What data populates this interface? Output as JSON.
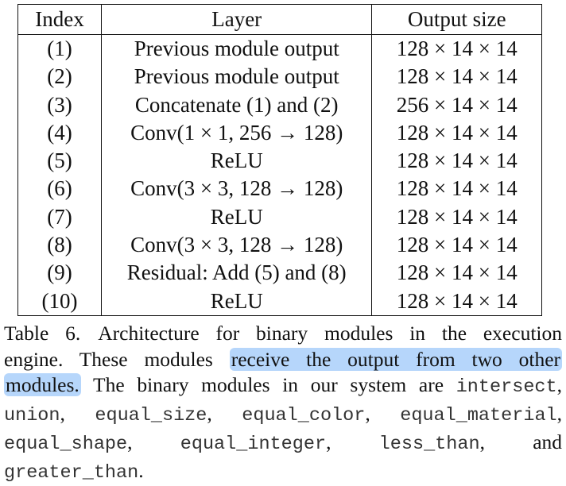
{
  "table": {
    "headers": {
      "index": "Index",
      "layer": "Layer",
      "output": "Output size"
    },
    "rows": [
      {
        "index": "(1)",
        "layer": "Previous module output",
        "output": "128 × 14 × 14"
      },
      {
        "index": "(2)",
        "layer": "Previous module output",
        "output": "128 × 14 × 14"
      },
      {
        "index": "(3)",
        "layer": "Concatenate (1) and (2)",
        "output": "256 × 14 × 14"
      },
      {
        "index": "(4)",
        "layer": "Conv(1 × 1, 256 → 128)",
        "output": "128 × 14 × 14"
      },
      {
        "index": "(5)",
        "layer": "ReLU",
        "output": "128 × 14 × 14"
      },
      {
        "index": "(6)",
        "layer": "Conv(3 × 3, 128 → 128)",
        "output": "128 × 14 × 14"
      },
      {
        "index": "(7)",
        "layer": "ReLU",
        "output": "128 × 14 × 14"
      },
      {
        "index": "(8)",
        "layer": "Conv(3 × 3, 128 → 128)",
        "output": "128 × 14 × 14"
      },
      {
        "index": "(9)",
        "layer": "Residual: Add (5) and (8)",
        "output": "128 × 14 × 14"
      },
      {
        "index": "(10)",
        "layer": "ReLU",
        "output": "128 × 14 × 14"
      }
    ]
  },
  "caption": {
    "label": "Table 6.",
    "text1": "Architecture for binary modules in the execution",
    "text2": "engine. These modules",
    "highlight1": "receive the output from two other",
    "highlight2": "modules.",
    "text3": " The binary modules in our system are ",
    "modules": [
      "intersect",
      "union",
      "equal_size",
      "equal_color",
      "equal_material",
      "equal_shape",
      "equal_integer",
      "less_than",
      "greater_than"
    ],
    "and_word": "and",
    "end": "."
  },
  "colors": {
    "highlight": "#b6d6fb"
  }
}
